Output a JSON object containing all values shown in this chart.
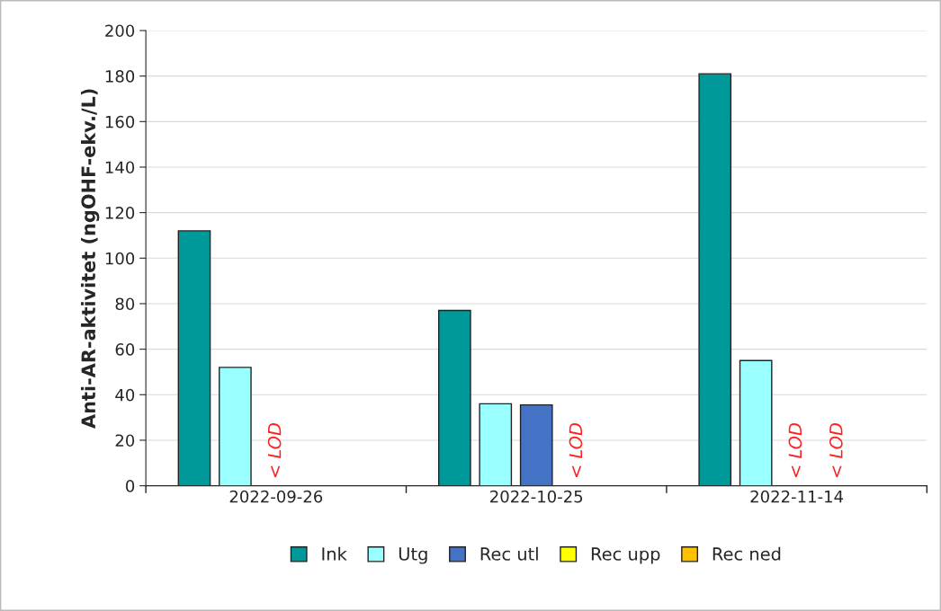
{
  "chart_data": {
    "type": "bar",
    "ylabel": "Anti-AR-aktivitet (ngOHF-ekv./L)",
    "categories": [
      "2022-09-26",
      "2022-10-25",
      "2022-11-14"
    ],
    "series": [
      {
        "name": "Ink",
        "color": "#009999",
        "values": [
          112,
          77,
          181
        ]
      },
      {
        "name": "Utg",
        "color": "#99ffff",
        "values": [
          52,
          36,
          55
        ]
      },
      {
        "name": "Rec utl",
        "color": "#4472c4",
        "values": [
          null,
          35.5,
          null
        ],
        "value_labels": [
          "< LOD",
          null,
          "< LOD"
        ]
      },
      {
        "name": "Rec upp",
        "color": "#ffff00",
        "values": [
          null,
          null,
          null
        ],
        "value_labels": [
          null,
          "< LOD",
          "< LOD"
        ]
      },
      {
        "name": "Rec ned",
        "color": "#ffc000",
        "values": [
          null,
          null,
          null
        ]
      }
    ],
    "ylim": [
      0,
      200
    ],
    "yticks": [
      0,
      20,
      40,
      60,
      80,
      100,
      120,
      140,
      160,
      180,
      200
    ],
    "grid": "y",
    "legend": "bottom"
  }
}
